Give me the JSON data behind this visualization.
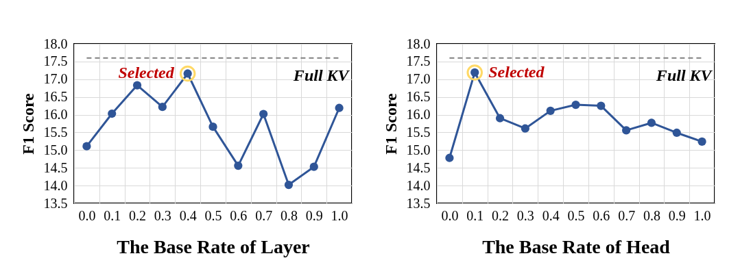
{
  "chart_data": [
    {
      "type": "line",
      "xlabel": "The Base Rate of Layer",
      "ylabel": "F1 Score",
      "categories": [
        "0.0",
        "0.1",
        "0.2",
        "0.3",
        "0.4",
        "0.5",
        "0.6",
        "0.7",
        "0.8",
        "0.9",
        "1.0"
      ],
      "series": [
        {
          "color": "#2f5597",
          "values": [
            15.11,
            16.03,
            16.83,
            16.22,
            17.16,
            15.66,
            14.56,
            16.02,
            14.02,
            14.53,
            16.19
          ]
        }
      ],
      "ylim": [
        13.5,
        18.0
      ],
      "yticks": [
        {
          "value": 13.5,
          "label": "13.5"
        },
        {
          "value": 14,
          "label": "14.0"
        },
        {
          "value": 14.5,
          "label": "14.5"
        },
        {
          "value": 15,
          "label": "15.0"
        },
        {
          "value": 15.5,
          "label": "15.5"
        },
        {
          "value": 16,
          "label": "16.0"
        },
        {
          "value": 16.5,
          "label": "16.5"
        },
        {
          "value": 17,
          "label": "17.0"
        },
        {
          "value": 17.5,
          "label": "17.5"
        },
        {
          "value": 18,
          "label": "18.0"
        }
      ],
      "ref_lines": [
        {
          "axis": "y",
          "value": 17.6,
          "label": "Full KV",
          "color": "#808080",
          "line_style": "dashed"
        }
      ],
      "annotations": [
        {
          "text": "Selected",
          "x": "0.4",
          "y": 17.16
        }
      ],
      "grid": true,
      "marker": "circle",
      "line_style": "solid"
    },
    {
      "type": "line",
      "xlabel": "The Base Rate of Head",
      "ylabel": "F1 Score",
      "categories": [
        "0.0",
        "0.1",
        "0.2",
        "0.3",
        "0.4",
        "0.5",
        "0.6",
        "0.7",
        "0.8",
        "0.9",
        "1.0"
      ],
      "series": [
        {
          "color": "#2f5597",
          "values": [
            14.78,
            17.19,
            15.9,
            15.61,
            16.11,
            16.28,
            16.25,
            15.56,
            15.77,
            15.49,
            15.24
          ]
        }
      ],
      "ylim": [
        13.5,
        18.0
      ],
      "yticks": [
        {
          "value": 13.5,
          "label": "13.5"
        },
        {
          "value": 14,
          "label": "14.0"
        },
        {
          "value": 14.5,
          "label": "14.5"
        },
        {
          "value": 15,
          "label": "15.0"
        },
        {
          "value": 15.5,
          "label": "15.5"
        },
        {
          "value": 16,
          "label": "16.0"
        },
        {
          "value": 16.5,
          "label": "16.5"
        },
        {
          "value": 17,
          "label": "17.0"
        },
        {
          "value": 17.5,
          "label": "17.5"
        },
        {
          "value": 18,
          "label": "18.0"
        }
      ],
      "ref_lines": [
        {
          "axis": "y",
          "value": 17.6,
          "label": "Full KV",
          "color": "#808080",
          "line_style": "dashed"
        }
      ],
      "annotations": [
        {
          "text": "Selected",
          "x": "0.1",
          "y": 17.19
        }
      ],
      "grid": true,
      "marker": "circle",
      "line_style": "solid"
    }
  ]
}
